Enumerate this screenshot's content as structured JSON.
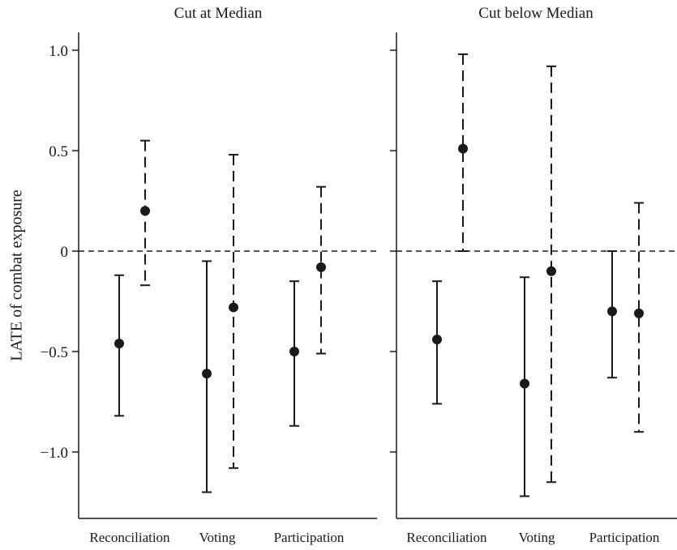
{
  "chart_data": {
    "type": "scatter",
    "ylabel": "LATE of combat exposure",
    "ylim": [
      -1.3,
      1.1
    ],
    "yticks": [
      1.0,
      0.5,
      0,
      -0.5,
      -1.0
    ],
    "ytick_labels": [
      "1.0",
      "0.5",
      "0",
      "-0.5",
      "-1.0"
    ],
    "categories": [
      "Reconciliation",
      "Voting",
      "Participation"
    ],
    "reference_line": 0,
    "panels": [
      {
        "title": "Cut at Median",
        "series": [
          {
            "style": "solid",
            "estimates": [
              -0.46,
              -0.61,
              -0.5
            ],
            "lower": [
              -0.82,
              -1.2,
              -0.87
            ],
            "upper": [
              -0.12,
              -0.05,
              -0.15
            ]
          },
          {
            "style": "dashed",
            "estimates": [
              0.2,
              -0.28,
              -0.08
            ],
            "lower": [
              -0.17,
              -1.08,
              -0.51
            ],
            "upper": [
              0.55,
              0.48,
              0.32
            ]
          }
        ]
      },
      {
        "title": "Cut below Median",
        "series": [
          {
            "style": "solid",
            "estimates": [
              -0.44,
              -0.66,
              -0.3
            ],
            "lower": [
              -0.76,
              -1.22,
              -0.63
            ],
            "upper": [
              -0.15,
              -0.13,
              0.0
            ]
          },
          {
            "style": "dashed",
            "estimates": [
              0.51,
              -0.1,
              -0.31
            ],
            "lower": [
              0.0,
              -1.15,
              -0.9
            ],
            "upper": [
              0.98,
              0.92,
              0.24
            ]
          }
        ]
      }
    ]
  }
}
